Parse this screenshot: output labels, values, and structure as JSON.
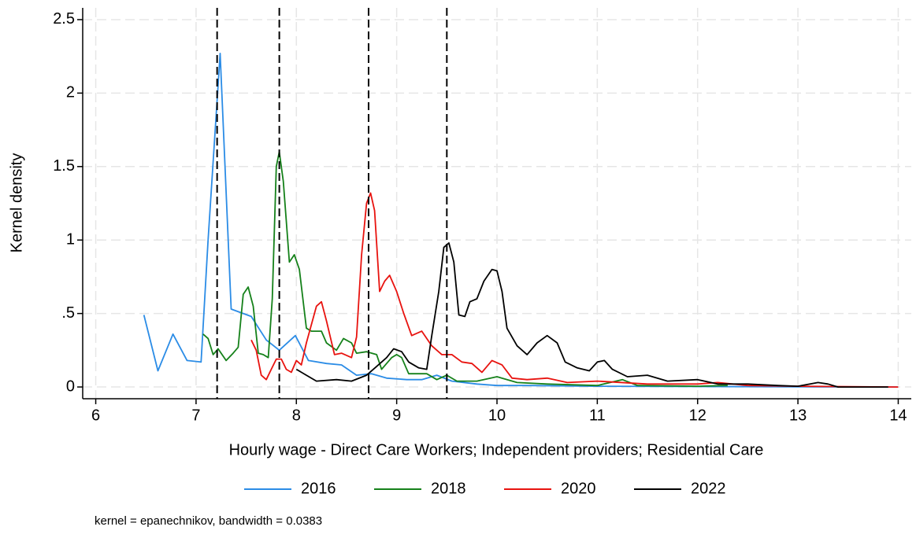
{
  "chart_data": {
    "type": "line",
    "x_label": "Hourly wage - Direct Care Workers; Independent providers; Residential Care",
    "y_label": "Kernel density",
    "note": "kernel = epanechnikov, bandwidth = 0.0383",
    "xlim": [
      5.87,
      14.13
    ],
    "ylim": [
      -0.08,
      2.58
    ],
    "xticks": [
      6,
      7,
      8,
      9,
      10,
      11,
      12,
      13,
      14
    ],
    "yticks": [
      0,
      {
        "value": 0.5,
        "label": ".5"
      },
      1,
      1.5,
      2,
      2.5
    ],
    "grid": true,
    "legend": "bottom",
    "reference_lines": [
      7.21,
      7.83,
      8.72,
      9.5
    ],
    "series": [
      {
        "name": "2016",
        "color": "#2b8ce6",
        "x": [
          6.48,
          6.62,
          6.77,
          6.91,
          7.05,
          7.12,
          7.24,
          7.35,
          7.55,
          7.7,
          7.83,
          7.99,
          8.12,
          8.3,
          8.45,
          8.6,
          8.75,
          8.9,
          9.1,
          9.25,
          9.4,
          9.55,
          9.8,
          10.0,
          10.3,
          11.0,
          12.0,
          14.0
        ],
        "values": [
          0.49,
          0.11,
          0.36,
          0.18,
          0.17,
          1.0,
          2.27,
          0.53,
          0.48,
          0.32,
          0.25,
          0.35,
          0.18,
          0.16,
          0.15,
          0.08,
          0.09,
          0.06,
          0.05,
          0.05,
          0.08,
          0.04,
          0.02,
          0.01,
          0.01,
          0.005,
          0.003,
          0
        ]
      },
      {
        "name": "2018",
        "color": "#15811a",
        "x": [
          7.07,
          7.12,
          7.17,
          7.22,
          7.3,
          7.37,
          7.42,
          7.47,
          7.52,
          7.57,
          7.62,
          7.67,
          7.72,
          7.76,
          7.8,
          7.83,
          7.87,
          7.93,
          7.98,
          8.03,
          8.1,
          8.15,
          8.25,
          8.3,
          8.4,
          8.47,
          8.55,
          8.6,
          8.7,
          8.8,
          8.85,
          8.95,
          9.0,
          9.05,
          9.12,
          9.2,
          9.3,
          9.4,
          9.5,
          9.6,
          9.8,
          10.0,
          10.2,
          10.5,
          11.0,
          11.25,
          11.4,
          12.0,
          12.3
        ],
        "values": [
          0.36,
          0.33,
          0.22,
          0.26,
          0.18,
          0.23,
          0.27,
          0.63,
          0.68,
          0.55,
          0.23,
          0.22,
          0.2,
          0.6,
          1.5,
          1.6,
          1.4,
          0.85,
          0.9,
          0.8,
          0.4,
          0.38,
          0.38,
          0.3,
          0.25,
          0.33,
          0.3,
          0.23,
          0.24,
          0.22,
          0.12,
          0.2,
          0.22,
          0.2,
          0.09,
          0.09,
          0.09,
          0.05,
          0.08,
          0.04,
          0.04,
          0.07,
          0.03,
          0.02,
          0.01,
          0.05,
          0.01,
          0.005,
          0.01
        ]
      },
      {
        "name": "2020",
        "color": "#e8130f",
        "x": [
          7.55,
          7.6,
          7.65,
          7.7,
          7.75,
          7.8,
          7.85,
          7.9,
          7.95,
          8.0,
          8.05,
          8.1,
          8.2,
          8.25,
          8.3,
          8.38,
          8.45,
          8.55,
          8.6,
          8.65,
          8.7,
          8.74,
          8.78,
          8.83,
          8.88,
          8.93,
          9.0,
          9.07,
          9.15,
          9.25,
          9.35,
          9.45,
          9.55,
          9.65,
          9.75,
          9.85,
          9.95,
          10.05,
          10.15,
          10.3,
          10.5,
          10.7,
          11.0,
          11.5,
          12.0,
          12.2,
          12.5,
          13.0,
          14.0
        ],
        "values": [
          0.32,
          0.25,
          0.08,
          0.05,
          0.12,
          0.19,
          0.19,
          0.12,
          0.1,
          0.18,
          0.15,
          0.3,
          0.55,
          0.58,
          0.45,
          0.22,
          0.23,
          0.2,
          0.34,
          0.9,
          1.25,
          1.32,
          1.2,
          0.65,
          0.72,
          0.76,
          0.65,
          0.5,
          0.35,
          0.38,
          0.28,
          0.22,
          0.22,
          0.17,
          0.16,
          0.1,
          0.18,
          0.15,
          0.06,
          0.05,
          0.06,
          0.03,
          0.04,
          0.02,
          0.02,
          0.03,
          0.01,
          0.005,
          0
        ]
      },
      {
        "name": "2022",
        "color": "#000000",
        "x": [
          8.0,
          8.1,
          8.2,
          8.4,
          8.55,
          8.7,
          8.8,
          8.9,
          8.97,
          9.05,
          9.12,
          9.22,
          9.3,
          9.35,
          9.42,
          9.47,
          9.52,
          9.57,
          9.62,
          9.68,
          9.73,
          9.8,
          9.87,
          9.95,
          10.0,
          10.05,
          10.1,
          10.2,
          10.3,
          10.4,
          10.5,
          10.6,
          10.68,
          10.8,
          10.92,
          11.0,
          11.07,
          11.15,
          11.3,
          11.5,
          11.7,
          12.0,
          12.2,
          12.5,
          12.8,
          13.0,
          13.2,
          13.3,
          13.4,
          13.9
        ],
        "values": [
          0.12,
          0.08,
          0.04,
          0.05,
          0.04,
          0.08,
          0.14,
          0.2,
          0.26,
          0.24,
          0.17,
          0.13,
          0.12,
          0.35,
          0.65,
          0.95,
          0.98,
          0.85,
          0.49,
          0.48,
          0.58,
          0.6,
          0.72,
          0.8,
          0.79,
          0.65,
          0.4,
          0.28,
          0.22,
          0.3,
          0.35,
          0.3,
          0.17,
          0.13,
          0.11,
          0.17,
          0.18,
          0.12,
          0.07,
          0.08,
          0.04,
          0.05,
          0.02,
          0.02,
          0.01,
          0.005,
          0.03,
          0.02,
          0,
          0
        ]
      }
    ]
  }
}
